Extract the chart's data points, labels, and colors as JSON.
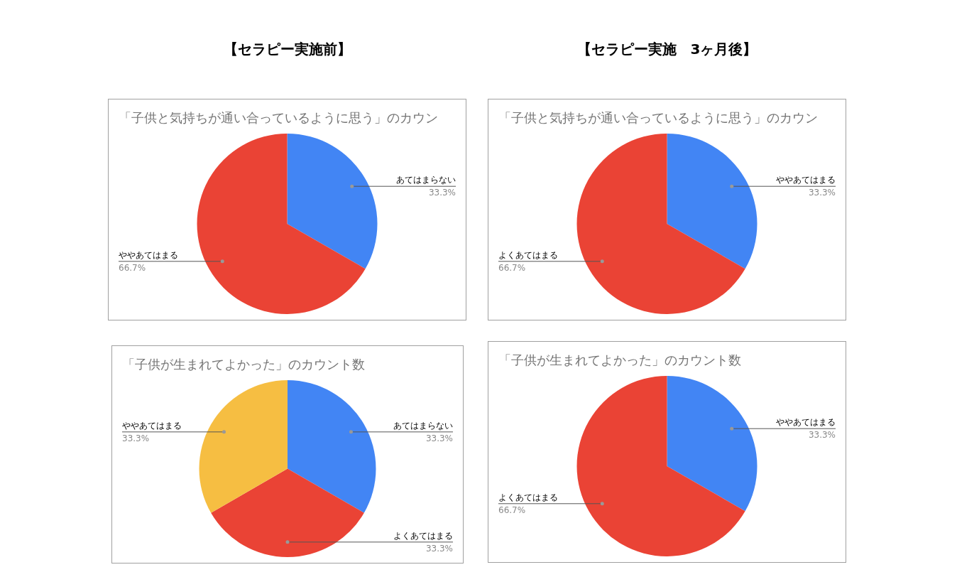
{
  "chart_data": [
    {
      "type": "pie",
      "title": "「子供と気持ちが通い合っているように思う」のカウン",
      "annotations": [
        "【セラピー実施前】"
      ],
      "categories": [
        "あてはまらない",
        "ややあてはまる"
      ],
      "values": [
        33.3,
        66.7
      ],
      "colors": [
        "#4285f4",
        "#ea4335"
      ],
      "value_labels": [
        "33.3%",
        "66.7%"
      ],
      "legend": false
    },
    {
      "type": "pie",
      "title": "「子供と気持ちが通い合っているように思う」のカウン",
      "annotations": [
        "【セラピー実施　3ヶ月後】"
      ],
      "categories": [
        "ややあてはまる",
        "よくあてはまる"
      ],
      "values": [
        33.3,
        66.7
      ],
      "colors": [
        "#4285f4",
        "#ea4335"
      ],
      "value_labels": [
        "33.3%",
        "66.7%"
      ],
      "legend": false
    },
    {
      "type": "pie",
      "title": "「子供が生まれてよかった」のカウント数",
      "categories": [
        "あてはまらない",
        "よくあてはまる",
        "ややあてはまる"
      ],
      "values": [
        33.3,
        33.3,
        33.3
      ],
      "colors": [
        "#4285f4",
        "#ea4335",
        "#f6be42"
      ],
      "value_labels": [
        "33.3%",
        "33.3%",
        "33.3%"
      ],
      "legend": false
    },
    {
      "type": "pie",
      "title": "「子供が生まれてよかった」のカウント数",
      "categories": [
        "ややあてはまる",
        "よくあてはまる"
      ],
      "values": [
        33.3,
        66.7
      ],
      "colors": [
        "#4285f4",
        "#ea4335"
      ],
      "value_labels": [
        "33.3%",
        "66.7%"
      ],
      "legend": false
    }
  ]
}
